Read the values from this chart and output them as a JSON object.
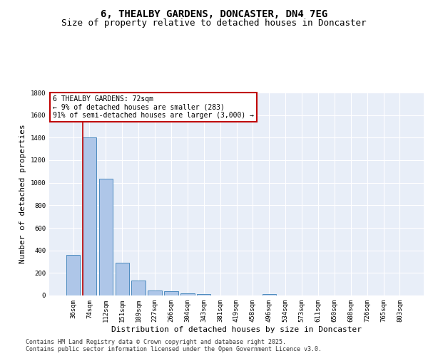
{
  "title_line1": "6, THEALBY GARDENS, DONCASTER, DN4 7EG",
  "title_line2": "Size of property relative to detached houses in Doncaster",
  "xlabel": "Distribution of detached houses by size in Doncaster",
  "ylabel": "Number of detached properties",
  "categories": [
    "36sqm",
    "74sqm",
    "112sqm",
    "151sqm",
    "189sqm",
    "227sqm",
    "266sqm",
    "304sqm",
    "343sqm",
    "381sqm",
    "419sqm",
    "458sqm",
    "496sqm",
    "534sqm",
    "573sqm",
    "611sqm",
    "650sqm",
    "688sqm",
    "726sqm",
    "765sqm",
    "803sqm"
  ],
  "values": [
    360,
    1400,
    1035,
    290,
    130,
    42,
    35,
    22,
    15,
    0,
    0,
    0,
    14,
    0,
    0,
    0,
    0,
    0,
    0,
    0,
    0
  ],
  "bar_color": "#aec6e8",
  "bar_edge_color": "#4d8bbf",
  "background_color": "#e8eef8",
  "grid_color": "#ffffff",
  "vline_color": "#c00000",
  "vline_x_index": 0.6,
  "annotation_text": "6 THEALBY GARDENS: 72sqm\n← 9% of detached houses are smaller (283)\n91% of semi-detached houses are larger (3,000) →",
  "annotation_box_color": "#c00000",
  "ylim": [
    0,
    1800
  ],
  "yticks": [
    0,
    200,
    400,
    600,
    800,
    1000,
    1200,
    1400,
    1600,
    1800
  ],
  "footer_text": "Contains HM Land Registry data © Crown copyright and database right 2025.\nContains public sector information licensed under the Open Government Licence v3.0.",
  "title_fontsize": 10,
  "subtitle_fontsize": 9,
  "axis_label_fontsize": 8,
  "tick_fontsize": 6.5,
  "annotation_fontsize": 7,
  "footer_fontsize": 6
}
